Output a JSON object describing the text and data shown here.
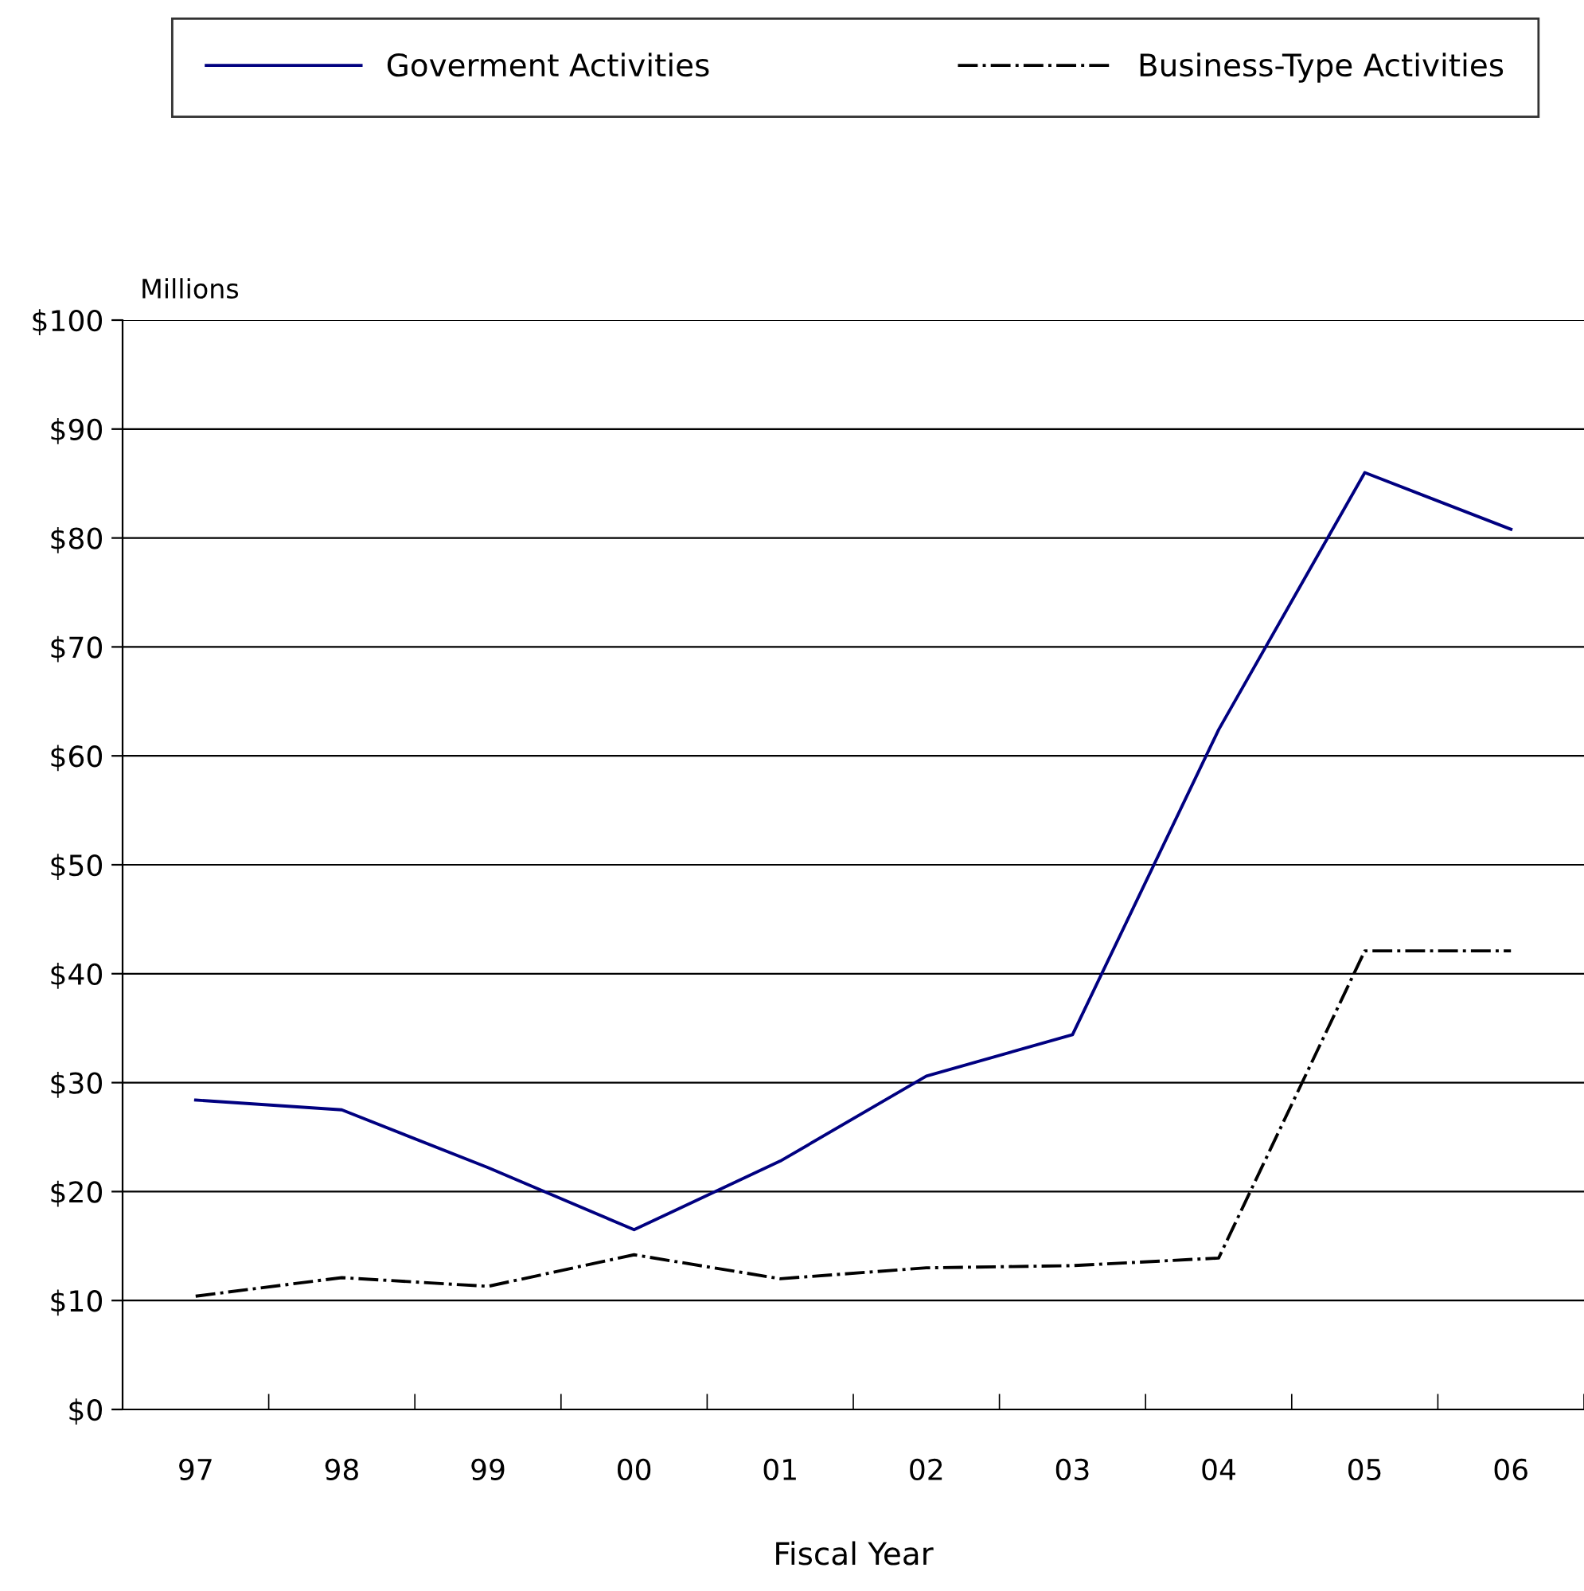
{
  "chart_data": {
    "type": "line",
    "xlabel": "Fiscal Year",
    "annotations": [
      "Millions"
    ],
    "categories": [
      "97",
      "98",
      "99",
      "00",
      "01",
      "02",
      "03",
      "04",
      "05",
      "06"
    ],
    "series": [
      {
        "name": "Goverment Activities",
        "color": "#000080",
        "line_style": "solid",
        "values": [
          28.4,
          27.5,
          22.2,
          16.5,
          22.8,
          30.6,
          34.4,
          62.4,
          86.0,
          80.8
        ]
      },
      {
        "name": "Business-Type Activities",
        "color": "#000000",
        "line_style": "dashdot",
        "values": [
          10.4,
          12.1,
          11.3,
          14.2,
          12.0,
          13.0,
          13.2,
          13.9,
          42.1,
          42.1
        ]
      }
    ],
    "ylim": [
      0,
      100
    ],
    "yticks": [
      {
        "value": 0,
        "label": "$0"
      },
      {
        "value": 10,
        "label": "$10"
      },
      {
        "value": 20,
        "label": "$20"
      },
      {
        "value": 30,
        "label": "$30"
      },
      {
        "value": 40,
        "label": "$40"
      },
      {
        "value": 50,
        "label": "$50"
      },
      {
        "value": 60,
        "label": "$60"
      },
      {
        "value": 70,
        "label": "$70"
      },
      {
        "value": 80,
        "label": "$80"
      },
      {
        "value": 90,
        "label": "$90"
      },
      {
        "value": 100,
        "label": "$100"
      }
    ],
    "grid": "y",
    "legend": "top",
    "marker": "none"
  }
}
